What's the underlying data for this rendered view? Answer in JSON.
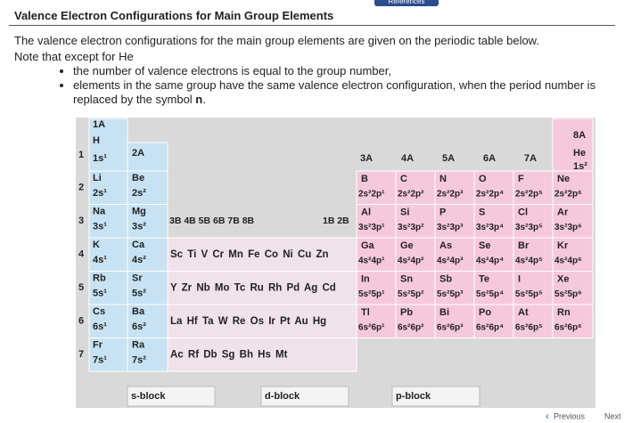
{
  "header": {
    "tab": "References",
    "title": "Valence Electron Configurations for Main Group Elements",
    "intro": "The valence electron configurations for the main group elements are given on the periodic table below.",
    "note": "Note that except for He",
    "bullet_1": "the number of valence electrons is equal to the group number,",
    "bullet_2": [
      "elements in the same group have the same valence electron configuration, when the period number is replaced by the symbol ",
      "n",
      "."
    ]
  },
  "periodic_table": {
    "groups": [
      "1A",
      "2A",
      "3A",
      "4A",
      "5A",
      "6A",
      "7A",
      "8A"
    ],
    "periods": [
      "1",
      "2",
      "3",
      "4",
      "5",
      "6",
      "7"
    ],
    "group_1a": [
      {
        "symbol": "H",
        "config": "1s¹"
      },
      {
        "symbol": "Li",
        "config": "2s¹"
      },
      {
        "symbol": "Na",
        "config": "3s¹"
      },
      {
        "symbol": "K",
        "config": "4s¹"
      },
      {
        "symbol": "Rb",
        "config": "5s¹"
      },
      {
        "symbol": "Cs",
        "config": "6s¹"
      },
      {
        "symbol": "Fr",
        "config": "7s¹"
      }
    ],
    "group_2a": [
      {
        "symbol": "Be",
        "config": "2s²"
      },
      {
        "symbol": "Mg",
        "config": "3s²"
      },
      {
        "symbol": "Ca",
        "config": "4s²"
      },
      {
        "symbol": "Sr",
        "config": "5s²"
      },
      {
        "symbol": "Ba",
        "config": "6s²"
      },
      {
        "symbol": "Ra",
        "config": "7s²"
      }
    ],
    "transition_headers": [
      "3B 4B 5B 6B 7B 8B",
      "1B 2B"
    ],
    "transition_rows": [
      "Sc Ti V Cr Mn Fe Co Ni Cu Zn",
      "Y Zr Nb Mo Tc Ru Rh Pd Ag Cd",
      "La Hf Ta W Re Os Ir Pt Au Hg",
      "Ac Rf Db Sg Bh Hs Mt"
    ],
    "helium": {
      "symbol": "He",
      "config": "1s²"
    },
    "p_block": [
      {
        "symbols": [
          "B",
          "C",
          "N",
          "O",
          "F",
          "Ne"
        ],
        "configs": [
          "2s²2p¹",
          "2s²2p²",
          "2s²2p³",
          "2s²2p⁴",
          "2s²2p⁵",
          "2s²2p⁶"
        ]
      },
      {
        "symbols": [
          "Al",
          "Si",
          "P",
          "S",
          "Cl",
          "Ar"
        ],
        "configs": [
          "3s²3p¹",
          "3s²3p²",
          "3s²3p³",
          "3s²3p⁴",
          "3s²3p⁵",
          "3s²3p⁶"
        ]
      },
      {
        "symbols": [
          "Ga",
          "Ge",
          "As",
          "Se",
          "Br",
          "Kr"
        ],
        "configs": [
          "4s²4p¹",
          "4s²4p²",
          "4s²4p³",
          "4s²4p⁴",
          "4s²4p⁵",
          "4s²4p⁶"
        ]
      },
      {
        "symbols": [
          "In",
          "Sn",
          "Sb",
          "Te",
          "I",
          "Xe"
        ],
        "configs": [
          "5s²5p¹",
          "5s²5p²",
          "5s²5p³",
          "5s²5p⁴",
          "5s²5p⁵",
          "5s²5p⁶"
        ]
      },
      {
        "symbols": [
          "Tl",
          "Pb",
          "Bi",
          "Po",
          "At",
          "Rn"
        ],
        "configs": [
          "6s²6p¹",
          "6s²6p²",
          "6s²6p³",
          "6s²6p⁴",
          "6s²6p⁵",
          "6s²6p⁶"
        ]
      }
    ],
    "legend": [
      "s-block",
      "d-block",
      "p-block"
    ]
  },
  "nav": {
    "previous": "Previous",
    "next": "Next"
  }
}
